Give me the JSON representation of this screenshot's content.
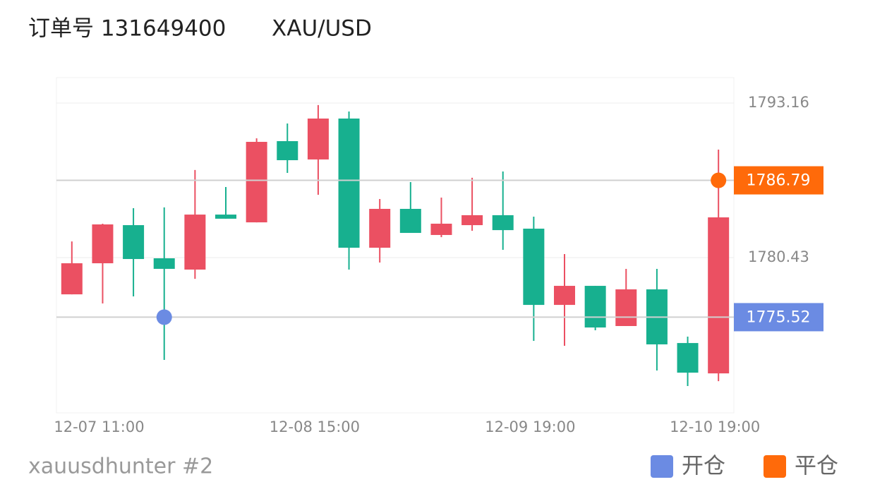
{
  "chart_data": {
    "type": "candlestick",
    "title": "订单号 131649400",
    "subtitle": "XAU/USD",
    "caption": "xauusdhunter #2",
    "categories": [
      null,
      "12-07 11:00",
      null,
      null,
      null,
      null,
      null,
      null,
      "12-08 15:00",
      null,
      null,
      null,
      null,
      null,
      null,
      "12-09 19:00",
      null,
      null,
      null,
      null,
      null,
      "12-10 19:00"
    ],
    "open": [
      1777.4,
      1779.96,
      1783.1,
      1780.37,
      1779.44,
      1783.97,
      1783.33,
      1790.02,
      1788.51,
      1791.88,
      1781.24,
      1784.44,
      1782.29,
      1783.1,
      1783.92,
      1782.81,
      1776.53,
      1778.1,
      1774.79,
      1777.81,
      1773.39,
      1770.89
    ],
    "high": [
      1781.76,
      1783.22,
      1784.5,
      1784.56,
      1787.64,
      1786.24,
      1790.25,
      1791.47,
      1792.99,
      1792.46,
      1785.25,
      1786.65,
      1785.37,
      1787.0,
      1787.52,
      1783.8,
      1780.72,
      1778.1,
      1779.5,
      1779.5,
      1773.92,
      1789.32
    ],
    "low": [
      1777.4,
      1776.65,
      1777.23,
      1772.0,
      1778.68,
      1783.63,
      1783.33,
      1787.4,
      1785.6,
      1779.44,
      1780.02,
      1782.46,
      1782.11,
      1782.64,
      1781.07,
      1773.57,
      1773.16,
      1774.44,
      1774.79,
      1771.13,
      1769.85,
      1770.25
    ],
    "close": [
      1779.96,
      1783.16,
      1780.31,
      1779.5,
      1783.97,
      1783.63,
      1789.96,
      1788.45,
      1791.88,
      1781.24,
      1784.44,
      1782.46,
      1783.22,
      1783.92,
      1782.69,
      1776.53,
      1778.1,
      1774.67,
      1777.81,
      1773.28,
      1770.95,
      1783.74
    ],
    "up_color": "#eb5062",
    "down_color": "#17b08f",
    "series": [
      {
        "name": "开仓",
        "color": "#6b8be3",
        "values": [
          null,
          null,
          null,
          1775.52,
          null,
          null,
          null,
          null,
          null,
          null,
          null,
          null,
          null,
          null,
          null,
          null,
          null,
          null,
          null,
          null,
          null,
          null
        ]
      },
      {
        "name": "平仓",
        "color": "#ff6a0a",
        "values": [
          null,
          null,
          null,
          null,
          null,
          null,
          null,
          null,
          null,
          null,
          null,
          null,
          null,
          null,
          null,
          null,
          null,
          null,
          null,
          null,
          null,
          1786.79
        ]
      }
    ],
    "ylim": [
      1767.64,
      1795.25
    ],
    "yticks": [
      1793.16,
      1780.43
    ],
    "grid": true
  }
}
